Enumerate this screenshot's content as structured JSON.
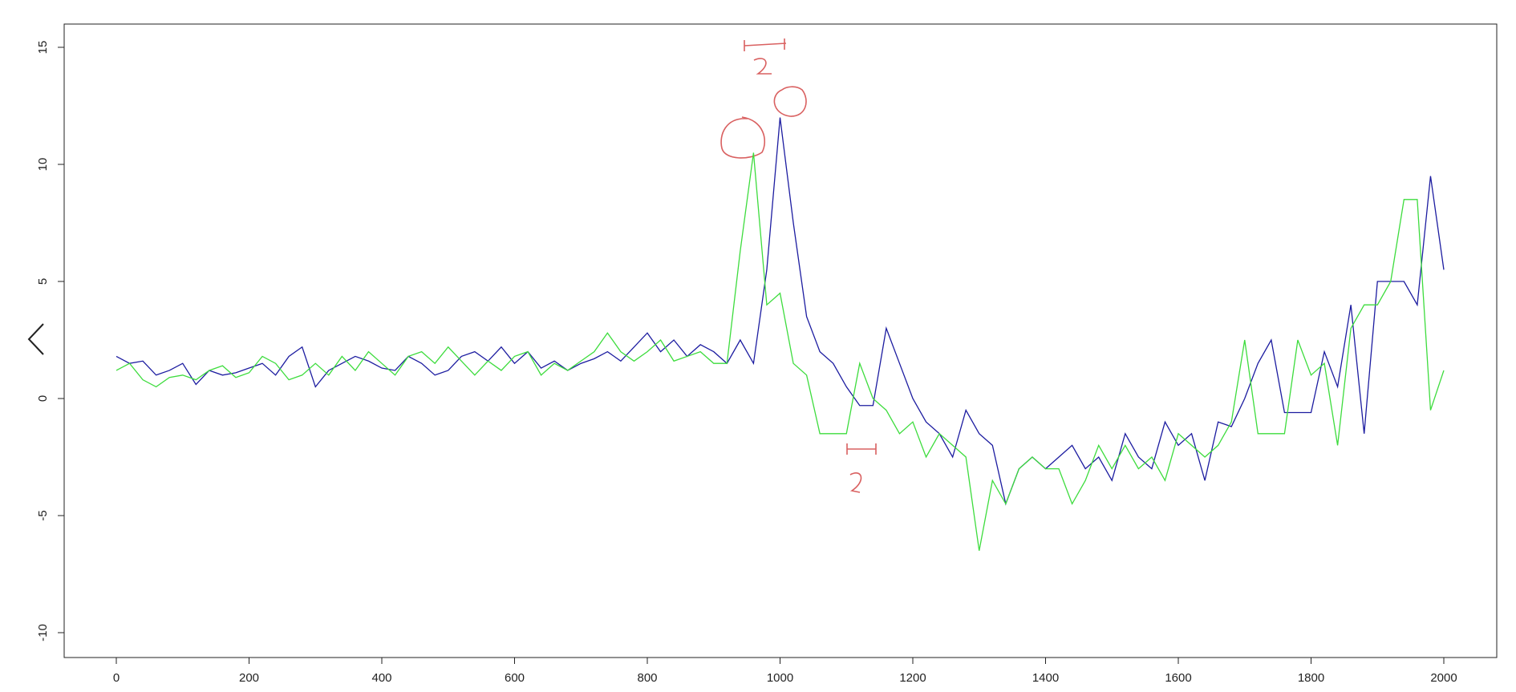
{
  "chart_data": {
    "type": "line",
    "x": [
      0,
      20,
      40,
      60,
      80,
      100,
      120,
      140,
      160,
      180,
      200,
      220,
      240,
      260,
      280,
      300,
      320,
      340,
      360,
      380,
      400,
      420,
      440,
      460,
      480,
      500,
      520,
      540,
      560,
      580,
      600,
      620,
      640,
      660,
      680,
      700,
      720,
      740,
      760,
      780,
      800,
      820,
      840,
      860,
      880,
      900,
      920,
      940,
      960,
      980,
      1000,
      1020,
      1040,
      1060,
      1080,
      1100,
      1120,
      1140,
      1160,
      1180,
      1200,
      1220,
      1240,
      1260,
      1280,
      1300,
      1320,
      1340,
      1360,
      1380,
      1400,
      1420,
      1440,
      1460,
      1480,
      1500,
      1520,
      1540,
      1560,
      1580,
      1600,
      1620,
      1640,
      1660,
      1680,
      1700,
      1720,
      1740,
      1760,
      1780,
      1800,
      1820,
      1840,
      1860,
      1880,
      1900,
      1920,
      1940,
      1960,
      1980,
      2000
    ],
    "series": [
      {
        "color": "#1c1ca0",
        "values": [
          1.8,
          1.5,
          1.6,
          1.0,
          1.2,
          1.5,
          0.6,
          1.2,
          1.0,
          1.1,
          1.3,
          1.5,
          1.0,
          1.8,
          2.2,
          0.5,
          1.2,
          1.5,
          1.8,
          1.6,
          1.3,
          1.2,
          1.8,
          1.5,
          1.0,
          1.2,
          1.8,
          2.0,
          1.6,
          2.2,
          1.5,
          2.0,
          1.3,
          1.6,
          1.2,
          1.5,
          1.7,
          2.0,
          1.6,
          2.2,
          2.8,
          2.0,
          2.5,
          1.8,
          2.3,
          2.0,
          1.5,
          2.5,
          1.5,
          5.5,
          12.0,
          7.5,
          3.5,
          2.0,
          1.5,
          0.5,
          -0.3,
          -0.3,
          3.0,
          1.5,
          0.0,
          -1.0,
          -1.5,
          -2.5,
          -0.5,
          -1.5,
          -2.0,
          -4.5,
          -3.0,
          -2.5,
          -3.0,
          -2.5,
          -2.0,
          -3.0,
          -2.5,
          -3.5,
          -1.5,
          -2.5,
          -3.0,
          -1.0,
          -2.0,
          -1.5,
          -3.5,
          -1.0,
          -1.2,
          0.0,
          1.5,
          2.5,
          -0.6,
          -0.6,
          -0.6,
          2.0,
          0.5,
          4.0,
          -1.5,
          5.0,
          5.0,
          5.0,
          4.0,
          9.5,
          5.5
        ]
      },
      {
        "color": "#3ddc3d",
        "values": [
          1.2,
          1.5,
          0.8,
          0.5,
          0.9,
          1.0,
          0.8,
          1.2,
          1.4,
          0.9,
          1.1,
          1.8,
          1.5,
          0.8,
          1.0,
          1.5,
          1.0,
          1.8,
          1.2,
          2.0,
          1.5,
          1.0,
          1.8,
          2.0,
          1.5,
          2.2,
          1.6,
          1.0,
          1.6,
          1.2,
          1.8,
          2.0,
          1.0,
          1.5,
          1.2,
          1.6,
          2.0,
          2.8,
          2.0,
          1.6,
          2.0,
          2.5,
          1.6,
          1.8,
          2.0,
          1.5,
          1.5,
          6.3,
          10.5,
          4.0,
          4.5,
          1.5,
          1.0,
          -1.5,
          -1.5,
          -1.5,
          1.5,
          0.0,
          -0.5,
          -1.5,
          -1.0,
          -2.5,
          -1.5,
          -2.0,
          -2.5,
          -6.5,
          -3.5,
          -4.5,
          -3.0,
          -2.5,
          -3.0,
          -3.0,
          -4.5,
          -3.5,
          -2.0,
          -3.0,
          -2.0,
          -3.0,
          -2.5,
          -3.5,
          -1.5,
          -2.0,
          -2.5,
          -2.0,
          -1.0,
          2.5,
          -1.5,
          -1.5,
          -1.5,
          2.5,
          1.0,
          1.5,
          -2.0,
          3.0,
          4.0,
          4.0,
          5.0,
          8.5,
          8.5,
          -0.5,
          1.2
        ]
      }
    ],
    "xlim": [
      0,
      2000
    ],
    "ylim": [
      -10,
      15
    ],
    "xticks": [
      0,
      200,
      400,
      600,
      800,
      1000,
      1200,
      1400,
      1600,
      1800,
      2000
    ],
    "yticks": [
      -10,
      -5,
      0,
      5,
      10,
      15
    ]
  }
}
